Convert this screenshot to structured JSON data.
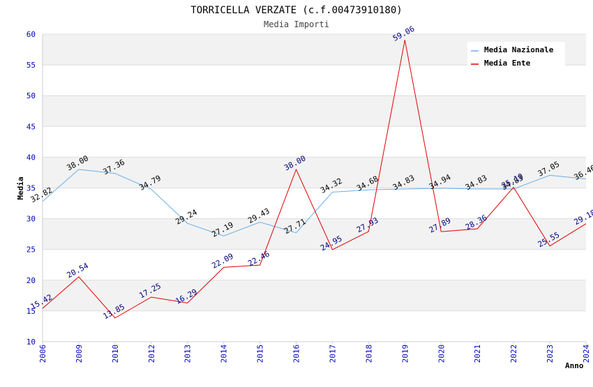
{
  "chart_data": {
    "type": "line",
    "title": "TORRICELLA VERZATE (c.f.00473910180)",
    "subtitle": "Media Importi",
    "xlabel": "Anno",
    "ylabel": "Media",
    "ylim": [
      10,
      60
    ],
    "yticks": [
      10,
      15,
      20,
      25,
      30,
      35,
      40,
      45,
      50,
      55,
      60
    ],
    "categories": [
      "2006",
      "2009",
      "2010",
      "2012",
      "2013",
      "2014",
      "2015",
      "2016",
      "2017",
      "2018",
      "2019",
      "2020",
      "2021",
      "2022",
      "2023",
      "2024"
    ],
    "series": [
      {
        "name": "Media Nazionale",
        "color": "#6aaee8",
        "values": [
          32.82,
          38.0,
          37.36,
          34.79,
          29.24,
          27.19,
          29.43,
          27.71,
          34.32,
          34.68,
          34.83,
          34.94,
          34.83,
          34.83,
          37.05,
          36.46
        ],
        "labels": [
          "32.82",
          "38.00",
          "37.36",
          "34.79",
          "29.24",
          "27.19",
          "29.43",
          "27.71",
          "34.32",
          "34.68",
          "34.83",
          "34.94",
          "34.83",
          "34.83",
          "37.05",
          "36.46"
        ]
      },
      {
        "name": "Media Ente",
        "color": "#e00000",
        "values": [
          15.42,
          20.54,
          13.85,
          17.25,
          16.29,
          22.09,
          22.46,
          38.0,
          24.95,
          27.93,
          59.06,
          27.89,
          28.36,
          35.1,
          25.55,
          29.18
        ],
        "labels": [
          "15.42",
          "20.54",
          "13.85",
          "17.25",
          "16.29",
          "22.09",
          "22.46",
          "38.00",
          "24.95",
          "27.93",
          "59.06",
          "27.89",
          "28.36",
          "35.10",
          "25.55",
          "29.18"
        ]
      }
    ],
    "grid": true,
    "legend_position": "top-right"
  }
}
